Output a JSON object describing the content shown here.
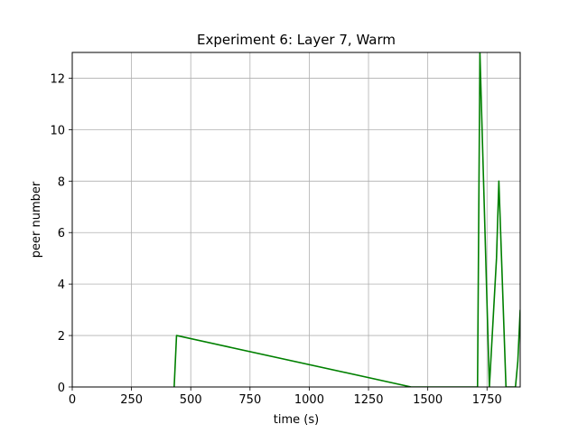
{
  "chart_data": {
    "type": "line",
    "title": "Experiment 6: Layer 7, Warm",
    "xlabel": "time (s)",
    "ylabel": "peer number",
    "xlim": [
      0,
      1890
    ],
    "ylim": [
      0,
      13
    ],
    "xticks": [
      0,
      250,
      500,
      750,
      1000,
      1250,
      1500,
      1750
    ],
    "yticks": [
      0,
      2,
      4,
      6,
      8,
      10,
      12
    ],
    "grid": true,
    "series": [
      {
        "color": "#008000",
        "x": [
          430,
          440,
          1430,
          1710,
          1720,
          1760,
          1790,
          1800,
          1830,
          1870,
          1880,
          1890
        ],
        "y": [
          0,
          2,
          0,
          0,
          13,
          0,
          5,
          8,
          0,
          0,
          1,
          3
        ]
      }
    ]
  }
}
